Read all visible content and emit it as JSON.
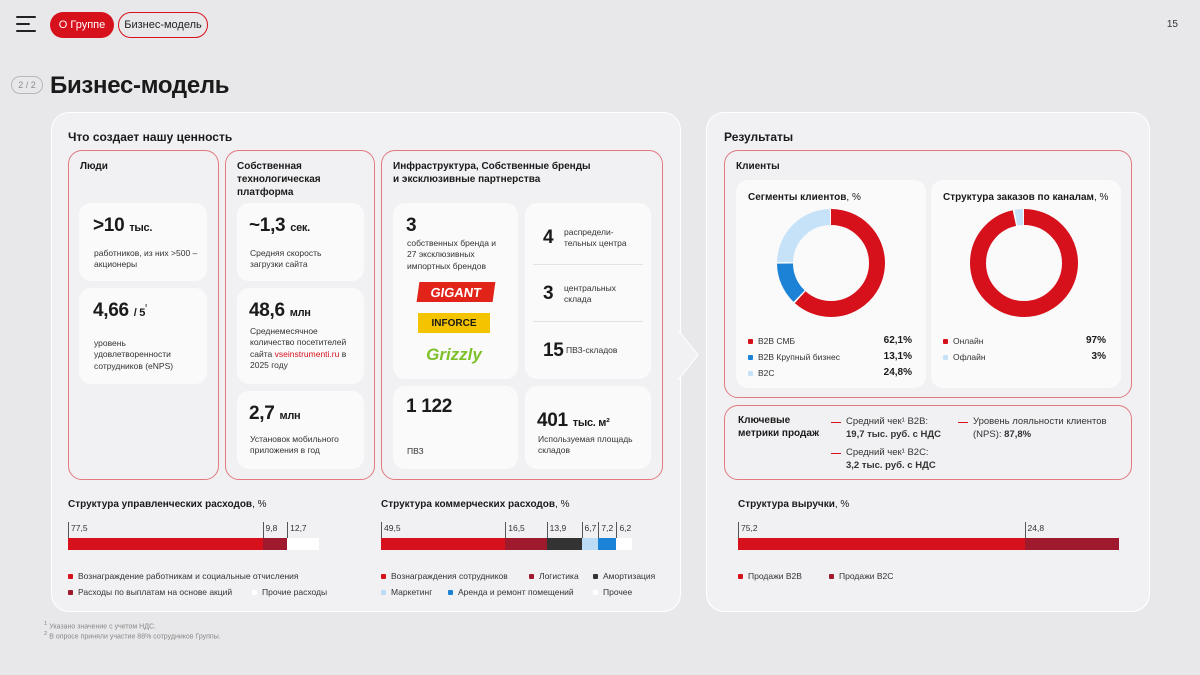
{
  "header": {
    "nav_active": "О Группе",
    "nav_second": "Бизнес-модель",
    "page_number": "15",
    "step": "2 / 2",
    "title": "Бизнес-модель"
  },
  "left_panel": {
    "title": "Что создает нашу ценность",
    "people": {
      "title": "Люди",
      "metric1": {
        "value": ">10",
        "unit": "тыс.",
        "desc": "работников, из них >500 – акционеры"
      },
      "metric2": {
        "value": "4,66",
        "unit": "/ 5",
        "sup": "²",
        "desc": "уровень удовлетворенности сотрудников (eNPS)"
      }
    },
    "tech": {
      "title": "Собственная технологическая платформа",
      "metric1": {
        "value": "~1,3",
        "unit": "сек.",
        "desc": "Средняя скорость загрузки сайта"
      },
      "metric2": {
        "value": "48,6",
        "unit": "млн",
        "desc_pre": "Среднемесячное количество посетителей сайта ",
        "desc_link": "vseinstrumenti.ru",
        "desc_post": " в 2025 году"
      },
      "metric3": {
        "value": "2,7",
        "unit": "млн",
        "desc": "Установок мобильного приложения в год"
      }
    },
    "infra": {
      "title": "Инфраструктура, Собственные бренды и эксклюзивные партнерства",
      "brands": {
        "value": "3",
        "desc": "собственных бренда и 27 эксклюзивных импортных брендов"
      },
      "logos": [
        "GIGANT",
        "INFORCE",
        "Grizzly"
      ],
      "dc": {
        "value": "4",
        "desc": "распредели-тельных центра"
      },
      "warehouses": {
        "value": "3",
        "desc": "центральных склада"
      },
      "pvz_warehouses": {
        "value": "15",
        "desc": "ПВЗ-складов"
      },
      "pvz": {
        "value": "1 122",
        "desc": "ПВЗ"
      },
      "area": {
        "value": "401",
        "unit": "тыс. м²",
        "desc": "Используемая площадь складов"
      }
    },
    "mgmt_costs": {
      "title": "Структура управленческих расходов",
      "pct": ", %",
      "values": [
        "77,5",
        "9,8",
        "12,7"
      ],
      "legend": [
        "Вознаграждение работникам и социальные отчисления",
        "Расходы по выплатам на основе акций",
        "Прочие расходы"
      ]
    },
    "comm_costs": {
      "title": "Структура коммерческих расходов",
      "pct": ", %",
      "values": [
        "49,5",
        "16,5",
        "13,9",
        "6,7",
        "7,2",
        "6,2"
      ],
      "legend": [
        "Вознаграждения сотрудников",
        "Логистика",
        "Амортизация",
        "Маркетинг",
        "Аренда и ремонт помещений",
        "Прочее"
      ]
    }
  },
  "right_panel": {
    "title": "Результаты",
    "clients": {
      "title": "Клиенты",
      "segments": {
        "title": "Сегменты клиентов",
        "pct": ", %",
        "labels": [
          "B2B СМБ",
          "B2B Крупный бизнес",
          "B2C"
        ],
        "values_text": [
          "62,1%",
          "13,1%",
          "24,8%"
        ]
      },
      "channels": {
        "title": "Структура заказов по каналам",
        "pct": ", %",
        "labels": [
          "Онлайн",
          "Офлайн"
        ],
        "values_text": [
          "97%",
          "3%"
        ]
      }
    },
    "metrics": {
      "title": "Ключевые метрики продаж",
      "b2b_label": "Средний чек¹ B2B:",
      "b2b_value": "19,7 тыс. руб. с НДС",
      "b2c_label": "Средний чек¹ B2C:",
      "b2c_value": "3,2 тыс. руб. с НДС",
      "nps_label": "Уровень лояльности клиентов (NPS):",
      "nps_value": "87,8%"
    },
    "revenue": {
      "title": "Структура выручки",
      "pct": ", %",
      "values": [
        "75,2",
        "24,8"
      ],
      "legend": [
        "Продажи B2B",
        "Продажи B2C"
      ]
    }
  },
  "footnotes": [
    "Указано значение с учетом НДС.",
    "В опросе приняли участие 88% сотрудников Группы."
  ],
  "chart_data": [
    {
      "type": "bar",
      "stacked": true,
      "title": "Структура управленческих расходов, %",
      "categories": [
        "Вознаграждение работникам и социальные отчисления",
        "Расходы по выплатам на основе акций",
        "Прочие расходы"
      ],
      "values": [
        77.5,
        9.8,
        12.7
      ],
      "colors": [
        "#d7111b",
        "#9e1a2c",
        "#ffffff"
      ]
    },
    {
      "type": "bar",
      "stacked": true,
      "title": "Структура коммерческих расходов, %",
      "categories": [
        "Вознаграждения сотрудников",
        "Логистика",
        "Амортизация",
        "Маркетинг",
        "Аренда и ремонт помещений",
        "Прочее"
      ],
      "values": [
        49.5,
        16.5,
        13.9,
        6.7,
        7.2,
        6.2
      ],
      "colors": [
        "#d7111b",
        "#9e1a2c",
        "#333333",
        "#bcdcf5",
        "#1b82d6",
        "#ffffff"
      ]
    },
    {
      "type": "pie",
      "donut": true,
      "title": "Сегменты клиентов, %",
      "categories": [
        "B2B СМБ",
        "B2B Крупный бизнес",
        "B2C"
      ],
      "values": [
        62.1,
        13.1,
        24.8
      ],
      "colors": [
        "#d7111b",
        "#1b82d6",
        "#c6e2f8"
      ]
    },
    {
      "type": "pie",
      "donut": true,
      "title": "Структура заказов по каналам, %",
      "categories": [
        "Онлайн",
        "Офлайн"
      ],
      "values": [
        97,
        3
      ],
      "colors": [
        "#d7111b",
        "#c6e2f8"
      ]
    },
    {
      "type": "bar",
      "stacked": true,
      "title": "Структура выручки, %",
      "categories": [
        "Продажи B2B",
        "Продажи B2C"
      ],
      "values": [
        75.2,
        24.8
      ],
      "colors": [
        "#d7111b",
        "#9e1a2c"
      ]
    }
  ]
}
